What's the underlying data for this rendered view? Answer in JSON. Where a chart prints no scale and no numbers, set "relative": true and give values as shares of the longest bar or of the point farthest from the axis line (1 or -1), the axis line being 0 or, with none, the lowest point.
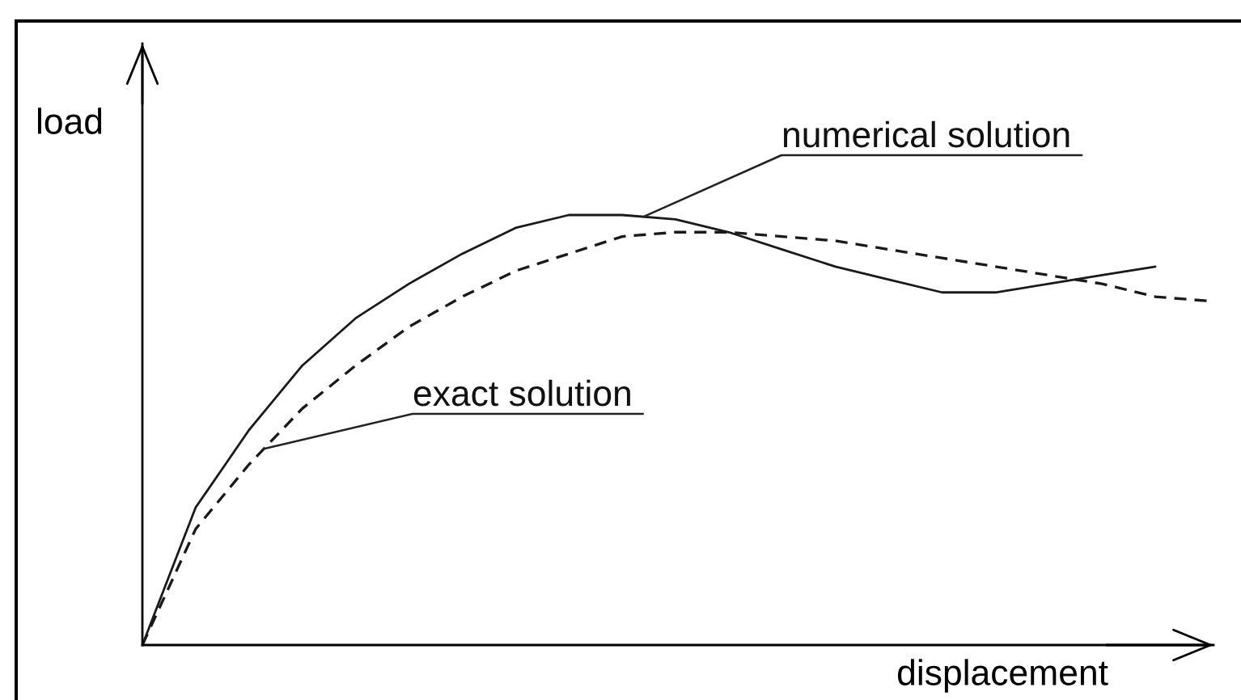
{
  "chart_data": {
    "type": "line",
    "relative": true,
    "xlabel": "displacement",
    "ylabel": "load",
    "categories": [
      null,
      null,
      null,
      null,
      null,
      null,
      null,
      null,
      null,
      null,
      null,
      null,
      null,
      null,
      null,
      null,
      null,
      null,
      null,
      null,
      null
    ],
    "series": [
      {
        "name": "numerical solution",
        "color": "#1a1a1a",
        "line_style": "solid",
        "values": [
          0,
          0.32,
          0.5,
          0.65,
          0.76,
          0.84,
          0.91,
          0.97,
          1,
          1,
          0.99,
          0.96,
          0.92,
          0.88,
          0.85,
          0.82,
          0.82,
          0.84,
          0.86,
          0.88,
          null
        ]
      },
      {
        "name": "exact solution",
        "color": "#1a1a1a",
        "line_style": "dashed",
        "values": [
          0,
          0.27,
          0.42,
          0.55,
          0.65,
          0.74,
          0.81,
          0.87,
          0.91,
          0.95,
          0.96,
          0.96,
          0.95,
          0.94,
          0.92,
          0.9,
          0.88,
          0.86,
          0.84,
          0.81,
          0.8
        ]
      }
    ]
  }
}
